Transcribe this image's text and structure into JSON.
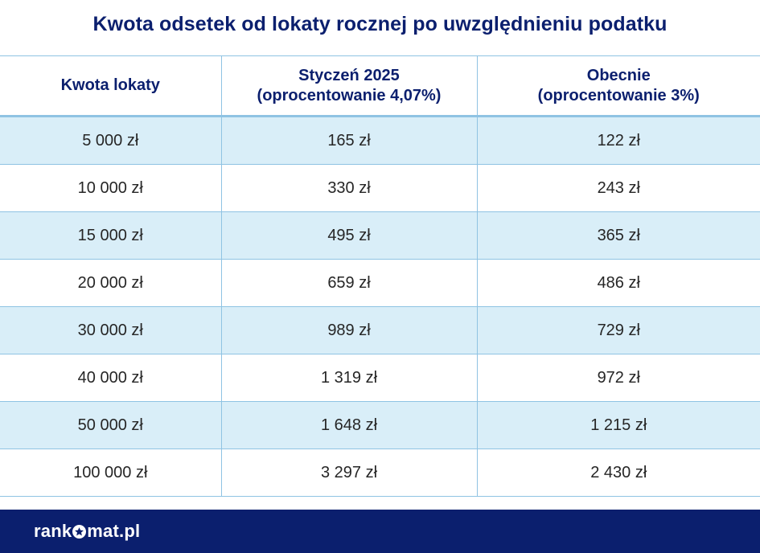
{
  "title": "Kwota odsetek od lokaty rocznej po uwzględnieniu podatku",
  "table": {
    "headers": [
      {
        "line1": "Kwota lokaty",
        "line2": ""
      },
      {
        "line1": "Styczeń 2025",
        "line2": "(oprocentowanie 4,07%)"
      },
      {
        "line1": "Obecnie",
        "line2": "(oprocentowanie 3%)"
      }
    ],
    "rows": [
      [
        "5 000 zł",
        "165 zł",
        "122 zł"
      ],
      [
        "10 000 zł",
        "330 zł",
        "243 zł"
      ],
      [
        "15 000 zł",
        "495 zł",
        "365 zł"
      ],
      [
        "20 000 zł",
        "659 zł",
        "486 zł"
      ],
      [
        "30 000 zł",
        "989 zł",
        "729 zł"
      ],
      [
        "40 000 zł",
        "1 319 zł",
        "972 zł"
      ],
      [
        "50 000 zł",
        "1 648 zł",
        "1 215 zł"
      ],
      [
        "100 000 zł",
        "3 297 zł",
        "2 430 zł"
      ]
    ]
  },
  "footer": {
    "brand_prefix": "rank",
    "brand_suffix": "mat.pl",
    "brand_icon": "star-icon"
  },
  "colors": {
    "title": "#0b1f6e",
    "shaded_row": "#d9eef8",
    "border": "#8fc3e3",
    "footer_bg": "#0b1f6e"
  }
}
